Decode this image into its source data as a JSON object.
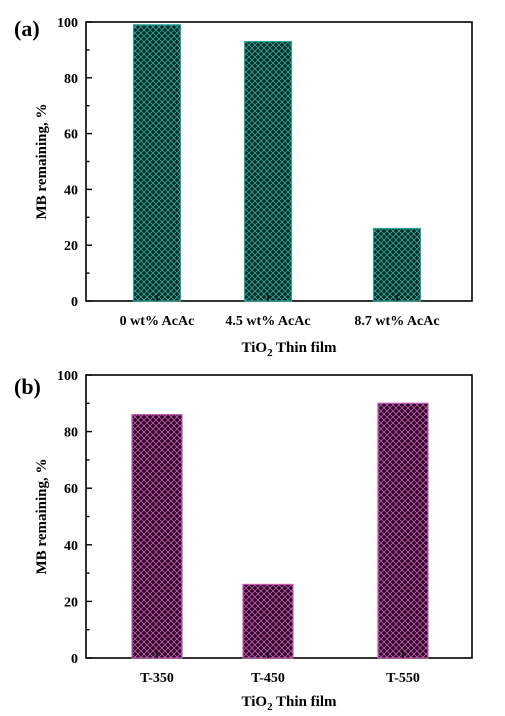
{
  "panels": [
    {
      "label": "(a)"
    },
    {
      "label": "(b)"
    }
  ],
  "chart_data": [
    {
      "type": "bar",
      "categories": [
        "0 wt% AcAc",
        "4.5 wt% AcAc",
        "8.7 wt% AcAc"
      ],
      "values": [
        99,
        93,
        26
      ],
      "xlabel": "TiO2 Thin film",
      "ylabel": "MB remaining, %",
      "ylim": [
        0,
        100
      ],
      "yticks": [
        0,
        20,
        40,
        60,
        80,
        100
      ],
      "grid": false,
      "bar_color": "#0b2b26",
      "bar_edge_color": "#2aa79b",
      "bar_pattern": "crosshatch"
    },
    {
      "type": "bar",
      "categories": [
        "T-350",
        "T-450",
        "T-550"
      ],
      "values": [
        86,
        26,
        90
      ],
      "xlabel": "TiO2 Thin film",
      "ylabel": "MB remaining, %",
      "ylim": [
        0,
        100
      ],
      "yticks": [
        0,
        20,
        40,
        60,
        80,
        100
      ],
      "grid": false,
      "bar_color": "#2b0a26",
      "bar_edge_color": "#c458b0",
      "bar_pattern": "crosshatch"
    }
  ]
}
